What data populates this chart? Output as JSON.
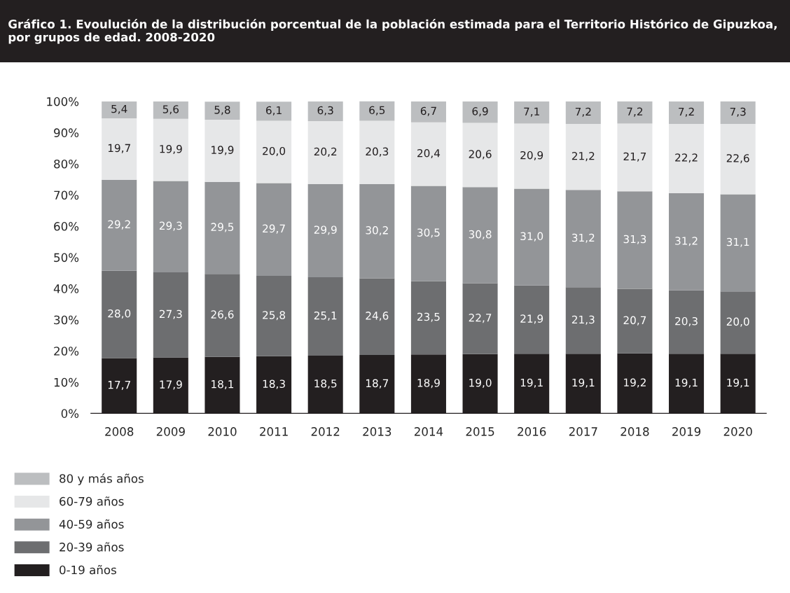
{
  "chart_data": {
    "type": "bar",
    "stacked": true,
    "title": "Gráfico 1. Evoulución de la distribución porcentual de la población estimada para el Territorio Histórico de Gipuzkoa, por grupos de edad. 2008-2020",
    "categories": [
      "2008",
      "2009",
      "2010",
      "2011",
      "2012",
      "2013",
      "2014",
      "2015",
      "2016",
      "2017",
      "2018",
      "2019",
      "2020"
    ],
    "series": [
      {
        "name": "0-19 años",
        "color": "#231f20",
        "values": [
          17.7,
          17.9,
          18.1,
          18.3,
          18.5,
          18.7,
          18.9,
          19.0,
          19.1,
          19.1,
          19.2,
          19.1,
          19.1
        ],
        "value_labels": [
          "17,7",
          "17,9",
          "18,1",
          "18,3",
          "18,5",
          "18,7",
          "18,9",
          "19,0",
          "19,1",
          "19,1",
          "19,2",
          "19,1",
          "19,1"
        ]
      },
      {
        "name": "20-39 años",
        "color": "#6d6e70",
        "values": [
          28.0,
          27.3,
          26.6,
          25.8,
          25.1,
          24.6,
          23.5,
          22.7,
          21.9,
          21.3,
          20.7,
          20.3,
          20.0
        ],
        "value_labels": [
          "28,0",
          "27,3",
          "26,6",
          "25,8",
          "25,1",
          "24,6",
          "23,5",
          "22,7",
          "21,9",
          "21,3",
          "20,7",
          "20,3",
          "20,0"
        ]
      },
      {
        "name": "40-59 años",
        "color": "#939598",
        "values": [
          29.2,
          29.3,
          29.5,
          29.7,
          29.9,
          30.2,
          30.5,
          30.8,
          31.0,
          31.2,
          31.3,
          31.2,
          31.1
        ],
        "value_labels": [
          "29,2",
          "29,3",
          "29,5",
          "29,7",
          "29,9",
          "30,2",
          "30,5",
          "30,8",
          "31,0",
          "31,2",
          "31,3",
          "31,2",
          "31,1"
        ]
      },
      {
        "name": "60-79 años",
        "color": "#e6e7e8",
        "values": [
          19.7,
          19.9,
          19.9,
          20.0,
          20.2,
          20.3,
          20.4,
          20.6,
          20.9,
          21.2,
          21.7,
          22.2,
          22.6
        ],
        "value_labels": [
          "19,7",
          "19,9",
          "19,9",
          "20,0",
          "20,2",
          "20,3",
          "20,4",
          "20,6",
          "20,9",
          "21,2",
          "21,7",
          "22,2",
          "22,6"
        ]
      },
      {
        "name": "80 y más años",
        "color": "#bcbec0",
        "values": [
          5.4,
          5.6,
          5.8,
          6.1,
          6.3,
          6.5,
          6.7,
          6.9,
          7.1,
          7.2,
          7.2,
          7.2,
          7.3
        ],
        "value_labels": [
          "5,4",
          "5,6",
          "5,8",
          "6,1",
          "6,3",
          "6,5",
          "6,7",
          "6,9",
          "7,1",
          "7,2",
          "7,2",
          "7,2",
          "7,3"
        ]
      }
    ],
    "ylim": [
      0,
      100
    ],
    "yticks": [
      {
        "value": 0,
        "label": "0%"
      },
      {
        "value": 10,
        "label": "10%"
      },
      {
        "value": 20,
        "label": "20%"
      },
      {
        "value": 30,
        "label": "30%"
      },
      {
        "value": 40,
        "label": "40%"
      },
      {
        "value": 50,
        "label": "50%"
      },
      {
        "value": 60,
        "label": "60%"
      },
      {
        "value": 70,
        "label": "70%"
      },
      {
        "value": 80,
        "label": "80%"
      },
      {
        "value": 90,
        "label": "90%"
      },
      {
        "value": 100,
        "label": "100%"
      }
    ],
    "grid": false,
    "legend": "bottom left"
  }
}
